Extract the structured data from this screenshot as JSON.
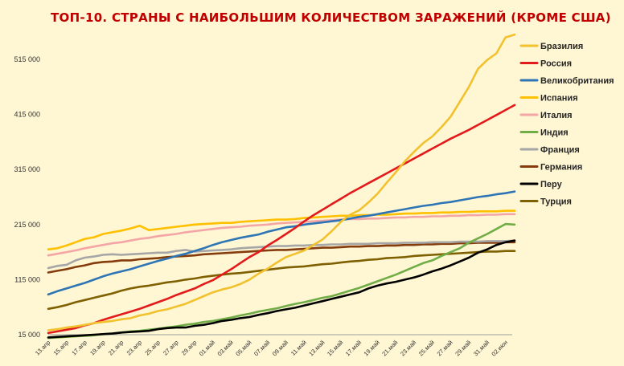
{
  "chart_data": {
    "type": "line",
    "title": "ТОП-10. СТРАНЫ С НАИБОЛЬШИМ КОЛИЧЕСТВОМ ЗАРАЖЕНИЙ (КРОМЕ США)",
    "xlabel": "",
    "ylabel": "",
    "ylim": [
      15000,
      560000
    ],
    "yticks": [
      "15 000",
      "115 000",
      "215 000",
      "315 000",
      "415 000",
      "515 000"
    ],
    "ytick_values": [
      15000,
      115000,
      215000,
      315000,
      415000,
      515000
    ],
    "x": [
      "13.апр",
      "14.апр",
      "15.апр",
      "16.апр",
      "17.апр",
      "18.апр",
      "19.апр",
      "20.апр",
      "21.апр",
      "22.апр",
      "23.апр",
      "24.апр",
      "25.апр",
      "26.апр",
      "27.апр",
      "28.апр",
      "29.апр",
      "30.апр",
      "01.май",
      "02.май",
      "03.май",
      "04.май",
      "05.май",
      "06.май",
      "07.май",
      "08.май",
      "09.май",
      "10.май",
      "11.май",
      "12.май",
      "13.май",
      "14.май",
      "15.май",
      "16.май",
      "17.май",
      "18.май",
      "19.май",
      "20.май",
      "21.май",
      "22.май",
      "23.май",
      "24.май",
      "25.май",
      "26.май",
      "27.май",
      "28.май",
      "29.май",
      "30.май",
      "31.май",
      "01.июн",
      "02.июн",
      "03.июн"
    ],
    "xtick_labels": [
      "13.апр",
      "15.апр",
      "17.апр",
      "19.апр",
      "21.апр",
      "23.апр",
      "25.апр",
      "27.апр",
      "29.апр",
      "01.май",
      "03.май",
      "05.май",
      "07.май",
      "09.май",
      "11.май",
      "13.май",
      "15.май",
      "17.май",
      "19.май",
      "21.май",
      "23.май",
      "25.май",
      "27.май",
      "29.май",
      "31.май",
      "02.июн"
    ],
    "grid": false,
    "legend_position": "right",
    "series": [
      {
        "name": "Бразилия",
        "color": "#f2c12e",
        "values": [
          23000,
          25000,
          28000,
          30000,
          33000,
          36000,
          38000,
          40000,
          43000,
          45000,
          50000,
          53000,
          58000,
          61000,
          66000,
          71000,
          78000,
          85000,
          92000,
          97000,
          101000,
          107000,
          115000,
          126000,
          135000,
          146000,
          156000,
          162000,
          168000,
          178000,
          188000,
          203000,
          220000,
          233000,
          241000,
          255000,
          271000,
          291000,
          310000,
          330000,
          347000,
          363000,
          375000,
          392000,
          411000,
          438000,
          465000,
          498000,
          514000,
          526000,
          555000,
          560000
        ]
      },
      {
        "name": "Россия",
        "color": "#e31a1c",
        "values": [
          18000,
          21000,
          24000,
          27000,
          32000,
          36000,
          42000,
          47000,
          52000,
          57000,
          62000,
          68000,
          74000,
          80000,
          87000,
          93000,
          99000,
          107000,
          114000,
          124000,
          134000,
          145000,
          156000,
          165000,
          177000,
          187000,
          198000,
          209000,
          221000,
          232000,
          242000,
          252000,
          262000,
          272000,
          281000,
          290000,
          299000,
          308000,
          317000,
          326000,
          335000,
          344000,
          353000,
          362000,
          371000,
          379000,
          387000,
          396000,
          405000,
          414000,
          423000,
          432000
        ]
      },
      {
        "name": "Великобритания",
        "color": "#2e75b6",
        "values": [
          88000,
          94000,
          99000,
          104000,
          109000,
          115000,
          121000,
          126000,
          130000,
          134000,
          139000,
          144000,
          149000,
          153000,
          158000,
          162000,
          167000,
          172000,
          178000,
          183000,
          187000,
          191000,
          194000,
          197000,
          202000,
          206000,
          210000,
          212000,
          215000,
          217000,
          219000,
          221000,
          223000,
          226000,
          229000,
          231000,
          234000,
          237000,
          240000,
          243000,
          246000,
          249000,
          251000,
          254000,
          256000,
          259000,
          262000,
          265000,
          267000,
          270000,
          272000,
          275000
        ]
      },
      {
        "name": "Испания",
        "color": "#ffc000",
        "values": [
          170000,
          172000,
          177000,
          183000,
          189000,
          192000,
          198000,
          201000,
          204000,
          208000,
          213000,
          205000,
          207000,
          209000,
          211000,
          213000,
          215000,
          216000,
          217000,
          218000,
          218000,
          220000,
          221000,
          222000,
          223000,
          224000,
          224000,
          225000,
          227000,
          228000,
          229000,
          230000,
          231000,
          231000,
          232000,
          232000,
          233000,
          233000,
          234000,
          235000,
          235000,
          236000,
          236000,
          237000,
          237000,
          238000,
          238000,
          239000,
          239000,
          239000,
          240000,
          240000
        ]
      },
      {
        "name": "Италия",
        "color": "#f4a6a6",
        "values": [
          159000,
          162000,
          165000,
          168000,
          172000,
          175000,
          178000,
          181000,
          183000,
          186000,
          189000,
          191000,
          194000,
          196000,
          198000,
          201000,
          203000,
          205000,
          207000,
          209000,
          210000,
          211000,
          213000,
          214000,
          215000,
          217000,
          218000,
          219000,
          220000,
          221000,
          222000,
          223000,
          224000,
          225000,
          225000,
          226000,
          226000,
          227000,
          228000,
          228000,
          229000,
          229000,
          230000,
          230000,
          231000,
          231000,
          232000,
          232000,
          233000,
          233000,
          234000,
          234000
        ]
      },
      {
        "name": "Индия",
        "color": "#70ad47",
        "values": [
          9000,
          10000,
          11000,
          12000,
          13000,
          14000,
          16000,
          17000,
          19000,
          21000,
          22000,
          24000,
          26000,
          28000,
          30000,
          33000,
          35000,
          38000,
          40000,
          43000,
          46000,
          50000,
          53000,
          57000,
          60000,
          63000,
          67000,
          71000,
          74000,
          78000,
          82000,
          85000,
          90000,
          95000,
          100000,
          106000,
          112000,
          118000,
          124000,
          131000,
          138000,
          145000,
          150000,
          158000,
          165000,
          172000,
          182000,
          190000,
          198000,
          207000,
          216000,
          215000
        ]
      },
      {
        "name": "Франция",
        "color": "#a6a6a6",
        "values": [
          136000,
          140000,
          142000,
          150000,
          155000,
          157000,
          160000,
          161000,
          160000,
          161000,
          162000,
          163000,
          164000,
          164000,
          167000,
          169000,
          166000,
          167000,
          168000,
          169000,
          170000,
          172000,
          173000,
          174000,
          175000,
          176000,
          176000,
          177000,
          177000,
          178000,
          178000,
          179000,
          179000,
          180000,
          180000,
          180000,
          181000,
          181000,
          181000,
          182000,
          182000,
          182000,
          183000,
          183000,
          183000,
          184000,
          184000,
          184000,
          185000,
          185000,
          185000,
          186000
        ]
      },
      {
        "name": "Германия",
        "color": "#843c0c",
        "values": [
          128000,
          131000,
          134000,
          138000,
          141000,
          145000,
          147000,
          148000,
          150000,
          150000,
          152000,
          153000,
          154000,
          156000,
          157000,
          158000,
          159000,
          161000,
          162000,
          163000,
          164000,
          165000,
          166000,
          167000,
          168000,
          169000,
          169000,
          170000,
          171000,
          172000,
          173000,
          173000,
          174000,
          175000,
          175000,
          176000,
          176000,
          177000,
          177000,
          178000,
          178000,
          179000,
          179000,
          180000,
          180000,
          181000,
          181000,
          182000,
          182000,
          182000,
          183000,
          183000
        ]
      },
      {
        "name": "Перу",
        "color": "#000000",
        "values": [
          10000,
          11000,
          12000,
          13000,
          14000,
          15000,
          16000,
          17000,
          19000,
          20000,
          21000,
          22000,
          25000,
          27000,
          28000,
          28000,
          31000,
          33000,
          36000,
          40000,
          42000,
          45000,
          47000,
          51000,
          54000,
          58000,
          61000,
          64000,
          68000,
          72000,
          76000,
          80000,
          84000,
          88000,
          92000,
          99000,
          104000,
          108000,
          111000,
          115000,
          119000,
          124000,
          130000,
          135000,
          141000,
          148000,
          155000,
          164000,
          170000,
          178000,
          183000,
          186000
        ]
      },
      {
        "name": "Турция",
        "color": "#7f6000",
        "values": [
          62000,
          65000,
          69000,
          74000,
          78000,
          82000,
          86000,
          90000,
          95000,
          99000,
          102000,
          104000,
          107000,
          110000,
          112000,
          115000,
          117000,
          120000,
          122000,
          124000,
          126000,
          127000,
          129000,
          131000,
          133000,
          135000,
          137000,
          138000,
          139000,
          141000,
          143000,
          144000,
          146000,
          148000,
          149000,
          151000,
          152000,
          154000,
          155000,
          156000,
          158000,
          159000,
          160000,
          161000,
          162000,
          163000,
          164000,
          165000,
          166000,
          166000,
          167000,
          167000
        ]
      }
    ]
  }
}
